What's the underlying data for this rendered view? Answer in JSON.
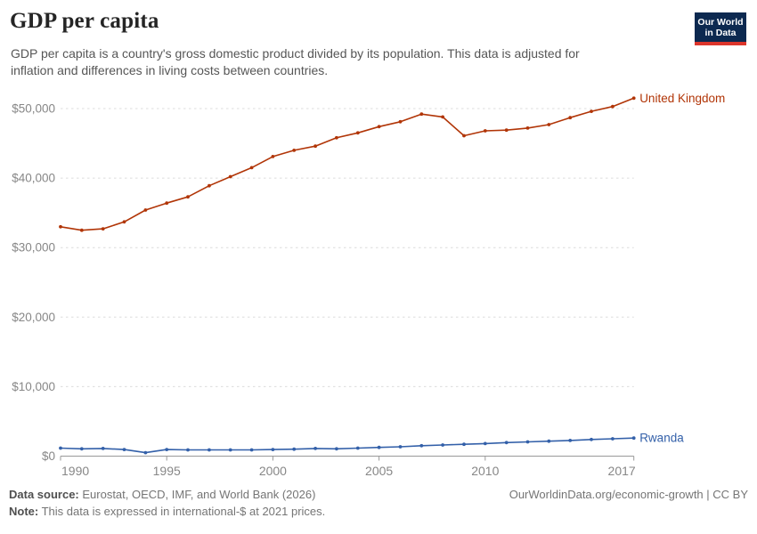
{
  "header": {
    "title": "GDP per capita",
    "subtitle": "GDP per capita is a country's gross domestic product divided by its population. This data is adjusted for inflation and differences in living costs between countries.",
    "logo": {
      "line1": "Our World",
      "line2": "in Data",
      "bg_color": "#0c2950",
      "bar_color": "#dc352b"
    }
  },
  "chart_data": {
    "type": "line",
    "title": "GDP per capita",
    "xlabel": "",
    "ylabel": "",
    "x": [
      1990,
      1991,
      1992,
      1993,
      1994,
      1995,
      1996,
      1997,
      1998,
      1999,
      2000,
      2001,
      2002,
      2003,
      2004,
      2005,
      2006,
      2007,
      2008,
      2009,
      2010,
      2011,
      2012,
      2013,
      2014,
      2015,
      2016,
      2017
    ],
    "series": [
      {
        "name": "United Kingdom",
        "color": "#b13507",
        "values": [
          33000,
          32500,
          32700,
          33700,
          35400,
          36400,
          37300,
          38900,
          40200,
          41500,
          43100,
          44000,
          44600,
          45800,
          46500,
          47400,
          48100,
          49200,
          48800,
          46100,
          46800,
          46900,
          47200,
          47700,
          48700,
          49600,
          50300,
          51500
        ]
      },
      {
        "name": "Rwanda",
        "color": "#3360a9",
        "values": [
          1150,
          1050,
          1100,
          950,
          500,
          950,
          900,
          900,
          900,
          900,
          950,
          1000,
          1100,
          1050,
          1150,
          1250,
          1350,
          1500,
          1600,
          1700,
          1800,
          1950,
          2050,
          2150,
          2250,
          2400,
          2500,
          2600
        ]
      }
    ],
    "xlim": [
      1990,
      2017
    ],
    "ylim": [
      0,
      52000
    ],
    "x_ticks": [
      1990,
      1995,
      2000,
      2005,
      2010,
      2017
    ],
    "y_ticks": [
      0,
      10000,
      20000,
      30000,
      40000,
      50000
    ],
    "y_tick_labels": [
      "$0",
      "$10,000",
      "$20,000",
      "$30,000",
      "$40,000",
      "$50,000"
    ],
    "grid": "horizontal-dashed",
    "legend_position": "end-of-line-labels",
    "units": "international-$ at 2021 prices"
  },
  "footer": {
    "source_label": "Data source:",
    "source_value": " Eurostat, OECD, IMF, and World Bank (2026)",
    "note_label": "Note:",
    "note_value": " This data is expressed in international-$ at 2021 prices.",
    "attribution": "OurWorldinData.org/economic-growth | CC BY"
  },
  "style_colors": {
    "gridline": "#dcdcdc",
    "axis": "#999999",
    "tick_label": "#878787"
  }
}
